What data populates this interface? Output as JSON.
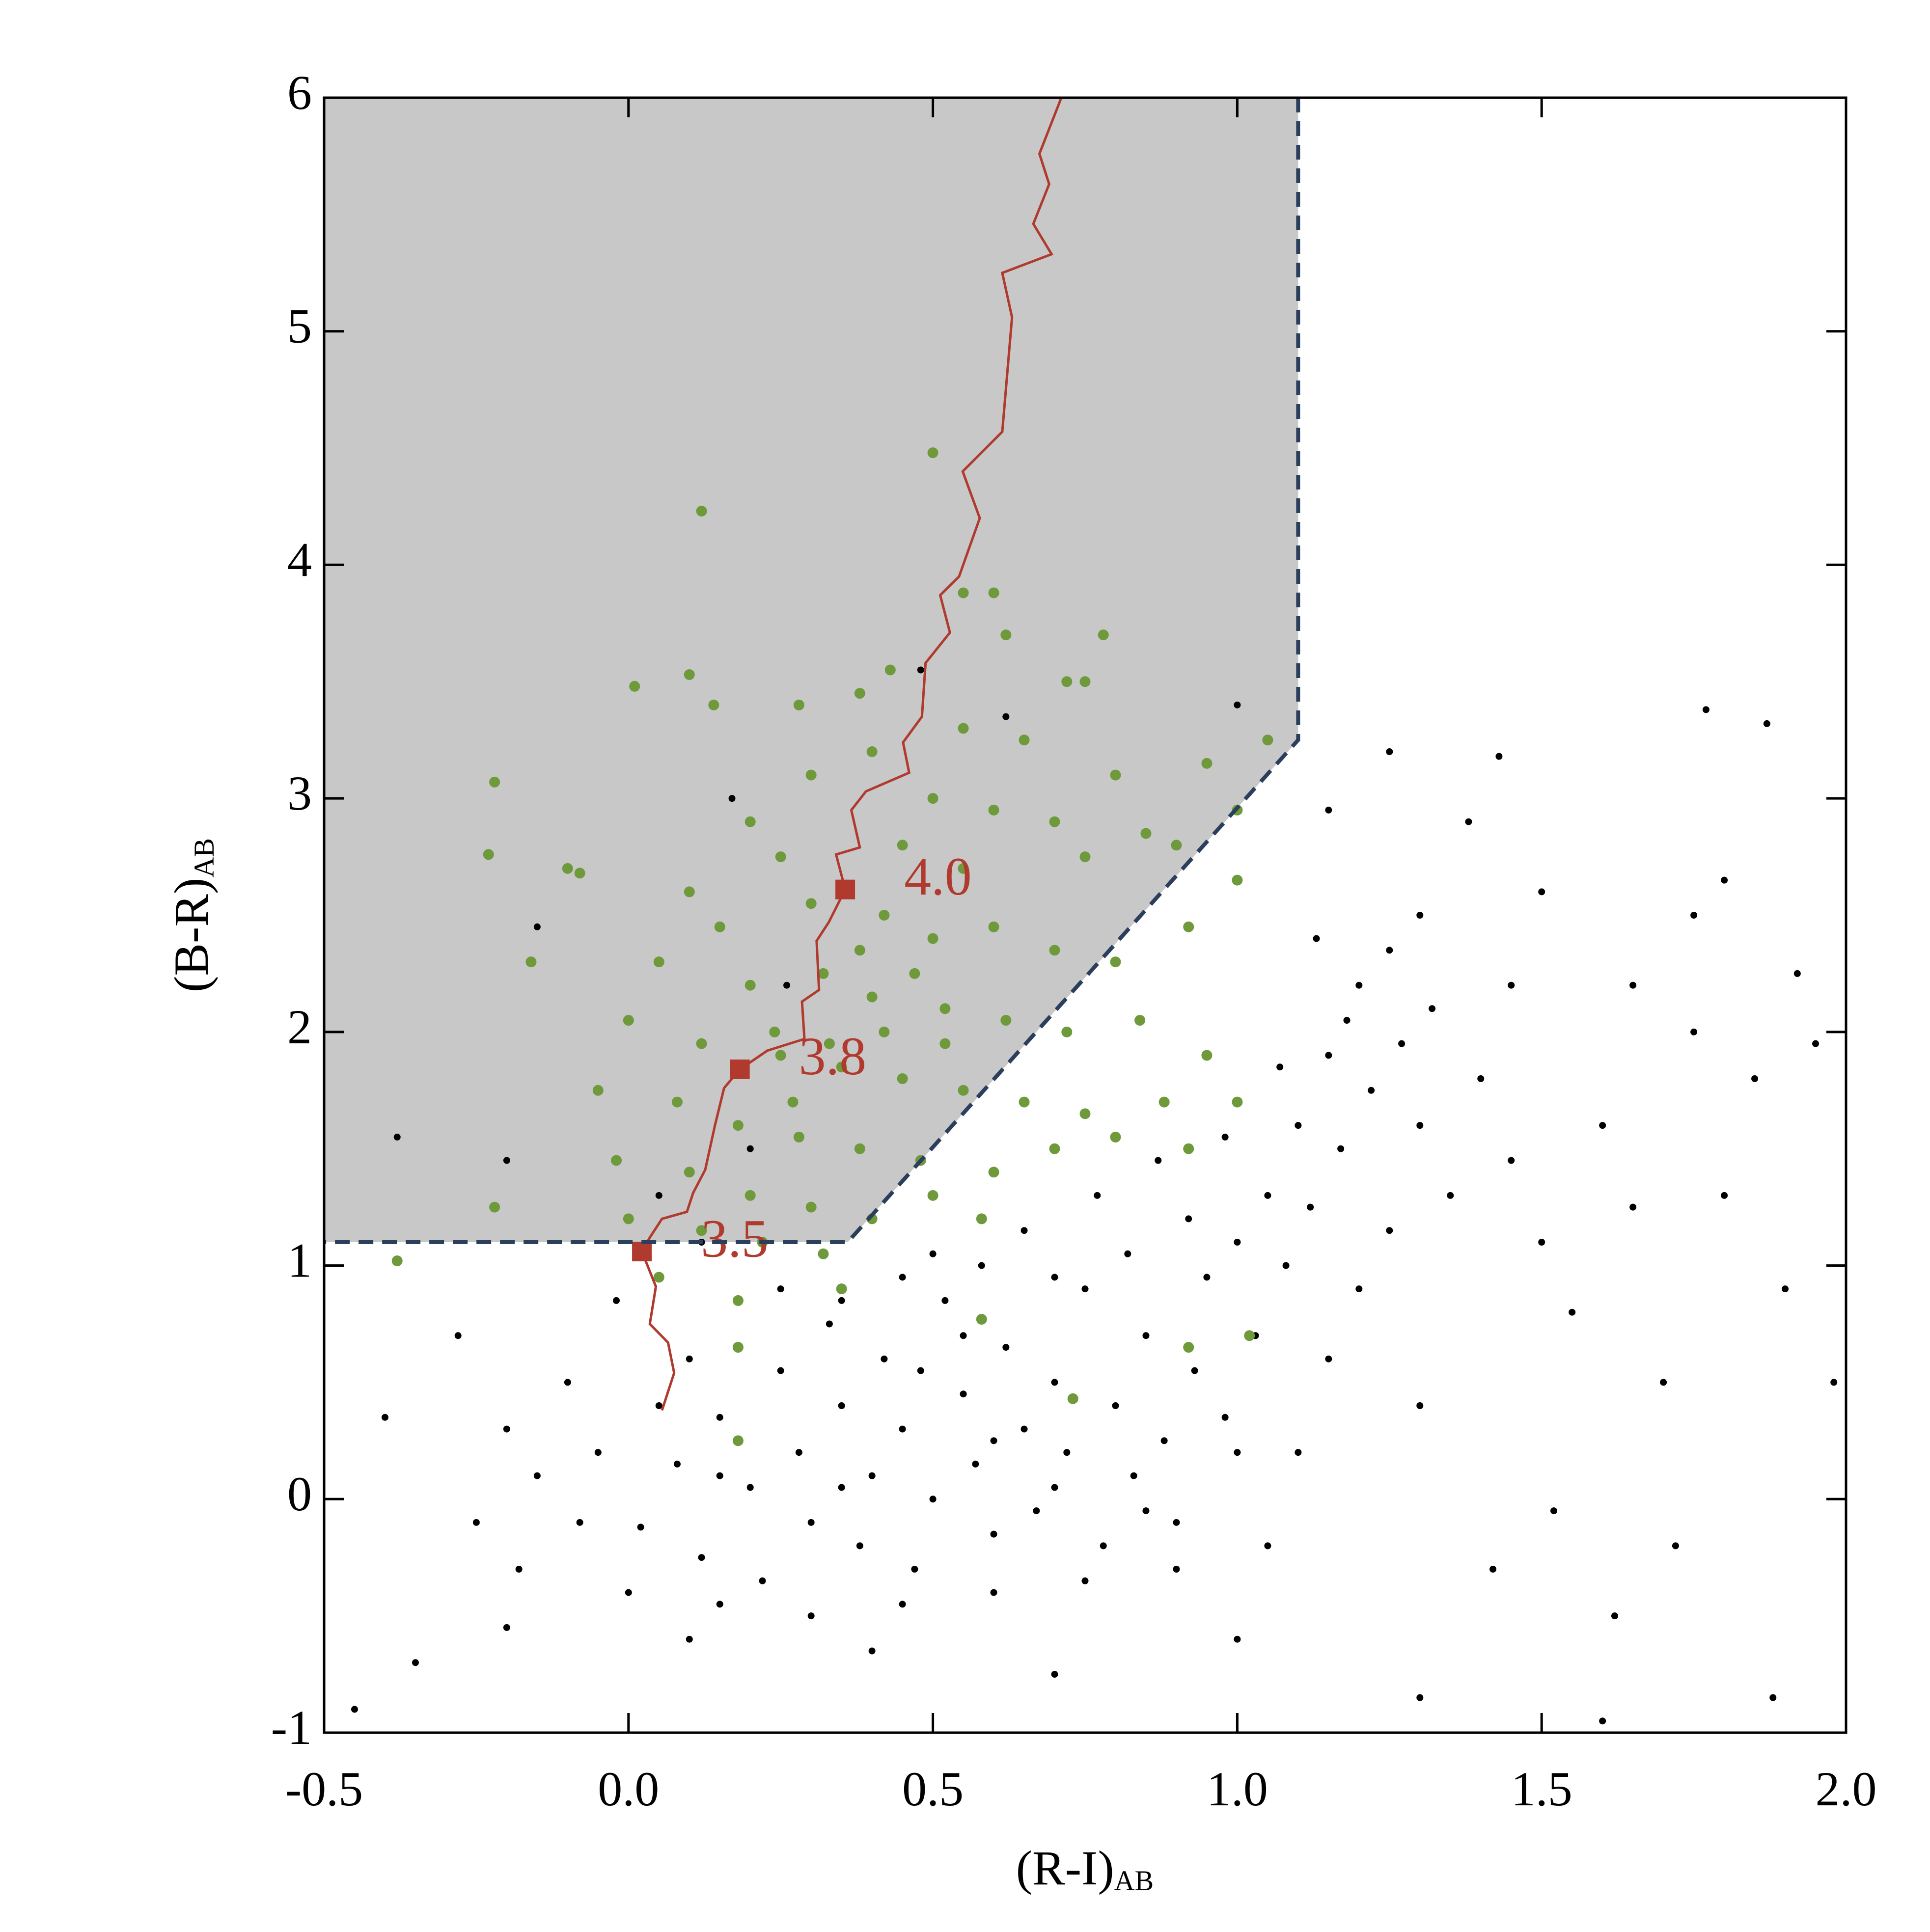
{
  "chart_data": {
    "type": "scatter",
    "xlabel": "(R-I)",
    "xlabel_sub": "AB",
    "ylabel": "(B-R)",
    "ylabel_sub": "AB",
    "xlim": [
      -0.5,
      2.0
    ],
    "ylim": [
      -1,
      6
    ],
    "xticks": [
      -0.5,
      {
        "value": 0,
        "label": "0.0"
      },
      0.5,
      {
        "value": 1,
        "label": "1.0"
      },
      1.5,
      {
        "value": 2,
        "label": "2.0"
      }
    ],
    "yticks": [
      -1,
      0,
      1,
      2,
      3,
      4,
      5,
      6
    ],
    "region": {
      "color": "#c8c8c8",
      "edge_color": "#2b3f5c",
      "x": [
        -0.5,
        1.1,
        1.1,
        0.36,
        -0.5
      ],
      "y": [
        6,
        6,
        3.25,
        1.1,
        1.1
      ]
    },
    "series": [
      {
        "color": "#000000",
        "x": [
          0.02,
          0.08,
          0.12,
          0.15,
          0.2,
          0.22,
          0.25,
          0.28,
          0.3,
          0.33,
          0.35,
          0.38,
          0.4,
          0.42,
          0.45,
          0.47,
          0.5,
          0.52,
          0.55,
          0.57,
          0.6,
          0.62,
          0.65,
          0.67,
          0.7,
          0.72,
          0.75,
          0.78,
          0.8,
          0.83,
          0.85,
          0.88,
          0.9,
          0.93,
          0.95,
          0.98,
          1.0,
          1.03,
          1.05,
          1.08,
          1.1,
          1.12,
          1.15,
          1.17,
          1.2,
          1.22,
          1.25,
          1.18,
          1.13,
          1.27,
          1.3,
          1.32,
          1.35,
          1.07,
          0.98,
          0.92,
          0.87,
          0.82,
          0.77,
          0.7,
          0.65,
          0.58,
          0.5,
          0.45,
          0.1,
          0.05,
          -0.05,
          -0.08,
          -0.1,
          -0.15,
          -0.18,
          -0.2,
          -0.25,
          -0.28,
          0.0,
          0.15,
          0.3,
          0.45,
          0.6,
          0.75,
          0.9,
          1.05,
          1.1,
          1.15,
          1.2,
          1.25,
          1.3,
          1.4,
          1.45,
          1.5,
          1.55,
          1.6,
          1.65,
          1.7,
          1.75,
          1.8,
          1.85,
          1.9,
          1.95,
          1.98,
          1.42,
          1.52,
          1.62,
          1.72,
          1.88,
          1.6,
          1.3,
          1.0,
          0.7,
          0.4,
          0.1,
          -0.2,
          -0.35,
          -0.45,
          -0.4,
          -0.38,
          -0.2,
          -0.15,
          0.05,
          0.2,
          0.17,
          0.62,
          1.0,
          1.77,
          1.87,
          1.25,
          1.43,
          1.8,
          1.75,
          1.15,
          1.5,
          1.38,
          0.48,
          1.65,
          1.92,
          1.45,
          1.3,
          0.26,
          0.12,
          -0.02,
          0.35,
          0.55,
          0.25,
          0.6,
          0.35,
          0.15,
          0.48,
          0.7,
          0.85,
          1.0
        ],
        "y": [
          -0.12,
          0.15,
          -0.25,
          0.35,
          0.05,
          -0.35,
          0.55,
          0.2,
          -0.1,
          0.75,
          0.4,
          -0.2,
          0.1,
          0.6,
          0.3,
          -0.3,
          0.0,
          0.85,
          0.45,
          0.15,
          -0.15,
          0.65,
          0.3,
          -0.05,
          0.5,
          0.2,
          0.9,
          -0.2,
          0.4,
          0.1,
          0.7,
          0.25,
          -0.1,
          0.55,
          0.95,
          0.35,
          1.1,
          0.7,
          1.3,
          1.0,
          1.6,
          1.25,
          1.9,
          1.5,
          2.2,
          1.75,
          2.35,
          2.05,
          2.4,
          1.95,
          1.6,
          2.1,
          1.3,
          1.85,
          1.55,
          1.2,
          1.45,
          1.05,
          1.3,
          0.95,
          1.15,
          1.0,
          1.05,
          0.95,
          0.6,
          0.4,
          0.2,
          -0.1,
          0.5,
          0.1,
          -0.3,
          0.3,
          -0.1,
          0.7,
          -0.4,
          -0.45,
          -0.5,
          -0.45,
          -0.4,
          -0.35,
          -0.3,
          -0.2,
          0.2,
          0.6,
          0.9,
          1.15,
          0.4,
          1.8,
          1.45,
          1.1,
          0.8,
          1.6,
          1.25,
          0.5,
          2.0,
          1.3,
          1.8,
          0.9,
          1.95,
          0.5,
          -0.3,
          -0.05,
          -0.5,
          -0.2,
          -0.85,
          -0.95,
          -0.85,
          -0.6,
          -0.75,
          -0.65,
          -0.6,
          -0.55,
          -0.7,
          -0.9,
          0.35,
          1.55,
          1.45,
          2.45,
          1.3,
          1.5,
          3.0,
          3.35,
          3.4,
          3.38,
          3.32,
          3.2,
          3.18,
          2.65,
          2.5,
          2.95,
          2.6,
          2.9,
          3.55,
          2.2,
          2.25,
          2.2,
          2.5,
          2.2,
          1.1,
          0.85,
          0.85,
          0.7,
          0.9,
          0.25,
          0.05,
          0.1,
          0.55,
          0.05,
          -0.05,
          0.2
        ]
      },
      {
        "color": "#6f9a3c",
        "x": [
          0.5,
          0.12,
          0.55,
          0.6,
          0.78,
          0.62,
          0.01,
          0.1,
          0.43,
          0.72,
          0.75,
          -0.22,
          -0.23,
          -0.1,
          -0.08,
          -0.16,
          0.14,
          0.28,
          0.38,
          0.55,
          0.65,
          0.8,
          0.95,
          1.05,
          0.3,
          0.4,
          0.5,
          0.6,
          0.7,
          0.85,
          1.0,
          0.2,
          0.25,
          0.45,
          0.55,
          0.75,
          0.9,
          0.1,
          0.15,
          0.3,
          0.42,
          0.5,
          0.6,
          0.7,
          0.8,
          0.92,
          1.0,
          0.05,
          0.2,
          0.32,
          0.4,
          0.52,
          0.62,
          0.72,
          0.84,
          0.95,
          0.0,
          0.12,
          0.25,
          0.35,
          0.45,
          0.55,
          0.65,
          0.75,
          0.88,
          1.0,
          -0.05,
          0.08,
          0.18,
          0.28,
          0.38,
          0.48,
          0.6,
          0.7,
          0.8,
          0.92,
          -0.02,
          0.1,
          0.2,
          0.3,
          0.4,
          0.5,
          0.58,
          0.0,
          0.12,
          0.22,
          0.32,
          0.05,
          0.18,
          0.18,
          0.18,
          0.35,
          0.58,
          0.73,
          0.92,
          1.02,
          -0.38,
          -0.22,
          0.27,
          0.33,
          0.42,
          0.38,
          0.47,
          0.52,
          0.24
        ],
        "y": [
          4.48,
          4.23,
          3.88,
          3.88,
          3.7,
          3.7,
          3.48,
          3.53,
          3.55,
          3.5,
          3.5,
          3.07,
          2.76,
          2.7,
          2.68,
          2.3,
          3.4,
          3.4,
          3.45,
          3.3,
          3.25,
          3.1,
          3.15,
          3.25,
          3.1,
          3.2,
          3.0,
          2.95,
          2.9,
          2.85,
          2.95,
          2.9,
          2.75,
          2.8,
          2.7,
          2.75,
          2.8,
          2.6,
          2.45,
          2.55,
          2.5,
          2.4,
          2.45,
          2.35,
          2.3,
          2.45,
          2.65,
          2.3,
          2.2,
          2.25,
          2.15,
          2.1,
          2.05,
          2.0,
          2.05,
          1.9,
          2.05,
          1.95,
          1.9,
          1.85,
          1.8,
          1.75,
          1.7,
          1.65,
          1.7,
          1.7,
          1.75,
          1.7,
          1.6,
          1.55,
          1.5,
          1.45,
          1.4,
          1.5,
          1.55,
          1.5,
          1.45,
          1.4,
          1.3,
          1.25,
          1.2,
          1.3,
          1.2,
          1.2,
          1.15,
          1.1,
          1.05,
          0.95,
          0.85,
          0.65,
          0.25,
          0.9,
          0.77,
          0.43,
          0.65,
          0.7,
          1.02,
          1.25,
          1.7,
          1.95,
          2.0,
          2.35,
          2.25,
          1.95,
          2.0
        ]
      }
    ],
    "track": {
      "color": "#b03a2e",
      "x": [
        0.711,
        0.675,
        0.691,
        0.665,
        0.695,
        0.614,
        0.63,
        0.614,
        0.549,
        0.577,
        0.543,
        0.512,
        0.528,
        0.488,
        0.482,
        0.451,
        0.461,
        0.39,
        0.366,
        0.38,
        0.341,
        0.356,
        0.329,
        0.309,
        0.313,
        0.285,
        0.289,
        0.228,
        0.183,
        0.157,
        0.142,
        0.126,
        0.106,
        0.096,
        0.055,
        0.035,
        0.022,
        0.045,
        0.035,
        0.065,
        0.075,
        0.055
      ],
      "y": [
        6.0,
        5.76,
        5.63,
        5.46,
        5.33,
        5.25,
        5.06,
        4.57,
        4.4,
        4.2,
        3.95,
        3.87,
        3.71,
        3.58,
        3.35,
        3.24,
        3.11,
        3.03,
        2.95,
        2.79,
        2.76,
        2.61,
        2.47,
        2.39,
        2.18,
        2.13,
        1.97,
        1.92,
        1.84,
        1.76,
        1.6,
        1.41,
        1.31,
        1.23,
        1.2,
        1.12,
        1.06,
        0.91,
        0.75,
        0.67,
        0.54,
        0.38
      ]
    },
    "markers": {
      "color": "#b03a2e",
      "x": [
        0.022,
        0.183,
        0.356
      ],
      "y": [
        1.06,
        1.84,
        2.61
      ],
      "labels": [
        "3.5",
        "3.8",
        "4.0"
      ]
    }
  }
}
